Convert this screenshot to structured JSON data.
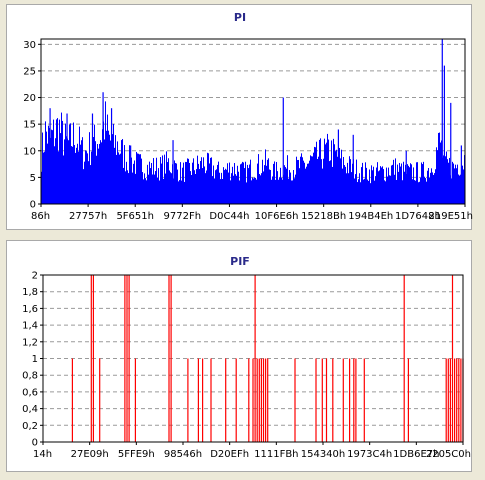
{
  "chart_data": [
    {
      "type": "bar",
      "title": "PI",
      "xlabel": "",
      "ylabel": "",
      "ylim": [
        0,
        31
      ],
      "yticks": [
        0,
        5,
        10,
        15,
        20,
        25,
        30
      ],
      "ytick_labels": [
        "0",
        "5",
        "10",
        "15",
        "20",
        "25",
        "30"
      ],
      "xtick_labels": [
        "86h",
        "27757h",
        "5F651h",
        "9772Fh",
        "D0C44h",
        "10F6E6h",
        "15218Bh",
        "194B4Eh",
        "1D7648h",
        "219E51h"
      ],
      "grid": true,
      "color": "#0000ff",
      "envelope": [
        [
          0,
          11
        ],
        [
          0.01,
          16
        ],
        [
          0.02,
          14
        ],
        [
          0.04,
          17
        ],
        [
          0.06,
          13
        ],
        [
          0.08,
          15
        ],
        [
          0.1,
          11
        ],
        [
          0.12,
          13
        ],
        [
          0.14,
          15
        ],
        [
          0.15,
          18
        ],
        [
          0.16,
          14
        ],
        [
          0.18,
          13
        ],
        [
          0.2,
          10
        ],
        [
          0.22,
          9
        ],
        [
          0.25,
          8
        ],
        [
          0.28,
          8
        ],
        [
          0.3,
          9
        ],
        [
          0.33,
          7
        ],
        [
          0.36,
          8
        ],
        [
          0.38,
          9
        ],
        [
          0.42,
          7
        ],
        [
          0.45,
          8
        ],
        [
          0.48,
          7
        ],
        [
          0.5,
          8
        ],
        [
          0.53,
          9
        ],
        [
          0.55,
          7
        ],
        [
          0.58,
          8
        ],
        [
          0.6,
          8
        ],
        [
          0.63,
          9
        ],
        [
          0.66,
          11
        ],
        [
          0.68,
          12
        ],
        [
          0.7,
          10
        ],
        [
          0.73,
          8
        ],
        [
          0.76,
          7
        ],
        [
          0.8,
          7
        ],
        [
          0.83,
          8
        ],
        [
          0.86,
          7
        ],
        [
          0.9,
          7
        ],
        [
          0.92,
          8
        ],
        [
          0.94,
          14
        ],
        [
          0.95,
          9
        ],
        [
          0.97,
          8
        ],
        [
          1.0,
          10
        ]
      ],
      "spikes": [
        [
          0.02,
          18
        ],
        [
          0.06,
          17
        ],
        [
          0.12,
          17
        ],
        [
          0.145,
          21
        ],
        [
          0.165,
          18
        ],
        [
          0.21,
          11
        ],
        [
          0.31,
          12
        ],
        [
          0.57,
          20
        ],
        [
          0.7,
          14
        ],
        [
          0.735,
          13
        ],
        [
          0.86,
          10
        ],
        [
          0.945,
          31
        ],
        [
          0.95,
          26
        ],
        [
          0.965,
          19
        ],
        [
          0.99,
          11
        ]
      ]
    },
    {
      "type": "bar",
      "title": "PIF",
      "xlabel": "",
      "ylabel": "",
      "ylim": [
        0,
        2
      ],
      "yticks": [
        0,
        0.2,
        0.4,
        0.6,
        0.8,
        1,
        1.2,
        1.4,
        1.6,
        1.8,
        2
      ],
      "ytick_labels": [
        "0",
        "0,2",
        "0,4",
        "0,6",
        "0,8",
        "1",
        "1,2",
        "1,4",
        "1,6",
        "1,8",
        "2"
      ],
      "xtick_labels": [
        "14h",
        "27E09h",
        "5FFE9h",
        "98546h",
        "D20EFh",
        "1111FBh",
        "154340h",
        "1973C4h",
        "1DB6E7h",
        "2205C0h"
      ],
      "grid": true,
      "color": "#ff0000",
      "bars": [
        [
          0.07,
          1
        ],
        [
          0.115,
          2
        ],
        [
          0.12,
          2
        ],
        [
          0.135,
          1
        ],
        [
          0.195,
          2
        ],
        [
          0.2,
          2
        ],
        [
          0.205,
          2
        ],
        [
          0.22,
          1
        ],
        [
          0.3,
          2
        ],
        [
          0.305,
          2
        ],
        [
          0.345,
          1
        ],
        [
          0.37,
          1
        ],
        [
          0.38,
          1
        ],
        [
          0.4,
          1
        ],
        [
          0.435,
          1
        ],
        [
          0.46,
          1
        ],
        [
          0.49,
          1
        ],
        [
          0.5,
          1
        ],
        [
          0.505,
          2
        ],
        [
          0.51,
          1
        ],
        [
          0.515,
          1
        ],
        [
          0.52,
          1
        ],
        [
          0.525,
          1
        ],
        [
          0.53,
          1
        ],
        [
          0.535,
          1
        ],
        [
          0.6,
          1
        ],
        [
          0.65,
          1
        ],
        [
          0.665,
          1
        ],
        [
          0.675,
          1
        ],
        [
          0.69,
          1
        ],
        [
          0.715,
          1
        ],
        [
          0.73,
          1
        ],
        [
          0.74,
          1
        ],
        [
          0.745,
          1
        ],
        [
          0.765,
          1
        ],
        [
          0.86,
          2
        ],
        [
          0.87,
          1
        ],
        [
          0.96,
          1
        ],
        [
          0.965,
          1
        ],
        [
          0.97,
          1
        ],
        [
          0.975,
          2
        ],
        [
          0.98,
          1
        ],
        [
          0.985,
          1
        ],
        [
          0.99,
          1
        ],
        [
          0.995,
          1
        ],
        [
          1.0,
          1
        ]
      ]
    }
  ]
}
